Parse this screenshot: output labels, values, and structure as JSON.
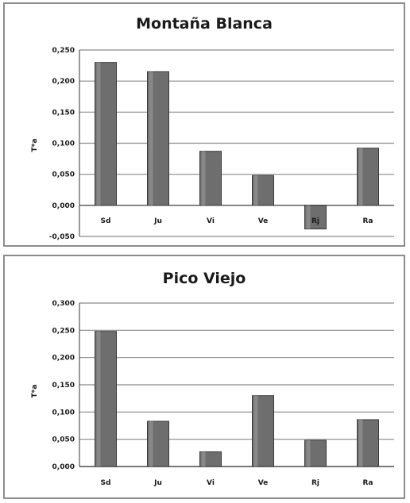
{
  "chart_data": [
    {
      "type": "bar",
      "title": "Montaña Blanca",
      "ylabel": "T*a",
      "categories": [
        "Sd",
        "Ju",
        "Vi",
        "Ve",
        "Rj",
        "Ra"
      ],
      "values": [
        0.23,
        0.215,
        0.087,
        0.048,
        -0.038,
        0.092
      ],
      "ylim": [
        -0.05,
        0.25
      ],
      "yticks": [
        "0,250",
        "0,200",
        "0,150",
        "0,100",
        "0,050",
        "0,000",
        "-0,050"
      ],
      "ytick_values": [
        0.25,
        0.2,
        0.15,
        0.1,
        0.05,
        0.0,
        -0.05
      ],
      "grid": true,
      "bar_color": "#6e6e6e"
    },
    {
      "type": "bar",
      "title": "Pico Viejo",
      "ylabel": "T*a",
      "categories": [
        "Sd",
        "Ju",
        "Vi",
        "Ve",
        "Rj",
        "Ra"
      ],
      "values": [
        0.248,
        0.083,
        0.027,
        0.13,
        0.048,
        0.086
      ],
      "ylim": [
        0.0,
        0.3
      ],
      "yticks": [
        "0,300",
        "0,250",
        "0,200",
        "0,150",
        "0,100",
        "0,050",
        "0,000"
      ],
      "ytick_values": [
        0.3,
        0.25,
        0.2,
        0.15,
        0.1,
        0.05,
        0.0
      ],
      "grid": true,
      "bar_color": "#6e6e6e"
    }
  ]
}
